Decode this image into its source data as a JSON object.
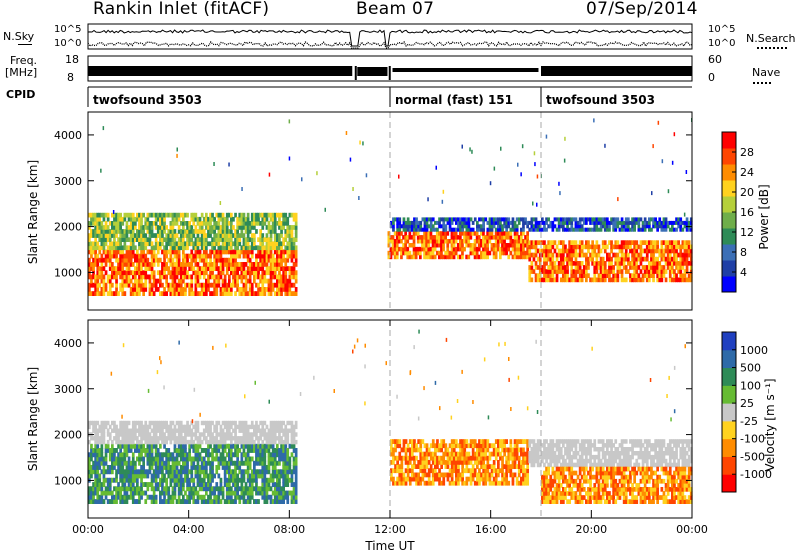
{
  "header": {
    "station": "Rankin Inlet (fitACF)",
    "beam": "Beam 07",
    "date": "07/Sep/2014"
  },
  "top_panels": {
    "nsky": {
      "label": "N.Sky",
      "ticks": [
        "10^5",
        "10^0"
      ],
      "right_label": "N.Search",
      "right_ticks": [
        "10^5",
        "10^0"
      ]
    },
    "freq": {
      "label": "Freq.",
      "unit": "[MHz]",
      "ticks": [
        "18",
        "8"
      ],
      "right_label": "Nave",
      "right_ticks": [
        "60",
        "0"
      ]
    },
    "cpid": {
      "label": "CPID",
      "segments": [
        {
          "start_hour": 0,
          "end_hour": 12,
          "label": "twofsound 3503"
        },
        {
          "start_hour": 12,
          "end_hour": 18,
          "label": "normal (fast) 151"
        },
        {
          "start_hour": 18,
          "end_hour": 24,
          "label": "twofsound 3503"
        }
      ]
    }
  },
  "chart_data": [
    {
      "type": "heatmap",
      "name": "power",
      "ylabel": "Slant Range [km]",
      "xlim": [
        0,
        24
      ],
      "ylim": [
        180,
        4500
      ],
      "yticks": [
        1000,
        2000,
        3000,
        4000
      ],
      "colorbar": {
        "label": "Power [dB]",
        "range": [
          0,
          32
        ],
        "ticks": [
          "28",
          "24",
          "20",
          "16",
          "12",
          "8",
          "4"
        ],
        "colors": [
          "#0000ff",
          "#1f3fa6",
          "#3b6fb6",
          "#2e8b57",
          "#6fae4a",
          "#b5cf3a",
          "#ffd21f",
          "#ff8c00",
          "#ff4500",
          "#ff0000"
        ]
      },
      "description_bands": [
        {
          "hours": [
            0,
            8.3
          ],
          "ranges_km": [
            500,
            1500
          ],
          "level": "high"
        },
        {
          "hours": [
            0,
            8.3
          ],
          "ranges_km": [
            1500,
            2300
          ],
          "level": "medium"
        },
        {
          "hours": [
            11.9,
            17.5
          ],
          "ranges_km": [
            1300,
            1900
          ],
          "level": "high"
        },
        {
          "hours": [
            12,
            24
          ],
          "ranges_km": [
            1900,
            2200
          ],
          "level": "low"
        },
        {
          "hours": [
            17.5,
            24
          ],
          "ranges_km": [
            800,
            1700
          ],
          "level": "high"
        }
      ]
    },
    {
      "type": "heatmap",
      "name": "velocity",
      "xlabel": "Time UT",
      "ylabel": "Slant Range [km]",
      "xlim": [
        0,
        24
      ],
      "ylim": [
        180,
        4500
      ],
      "xticks": [
        "00:00",
        "04:00",
        "08:00",
        "12:00",
        "16:00",
        "20:00",
        "00:00"
      ],
      "yticks": [
        1000,
        2000,
        3000,
        4000
      ],
      "colorbar": {
        "label": "Velocity [m s⁻¹]",
        "ticks": [
          "1000",
          "500",
          "100",
          "25",
          "-25",
          "-100",
          "-500",
          "-1000"
        ],
        "colors": [
          "#2040c0",
          "#2e6aa8",
          "#2e8b57",
          "#66bb33",
          "#c8c8c8",
          "#ffd21f",
          "#ff8c00",
          "#ff4500",
          "#ff0000"
        ]
      },
      "description_bands": [
        {
          "hours": [
            0,
            8.3
          ],
          "ranges_km": [
            500,
            1800
          ],
          "level": "positive"
        },
        {
          "hours": [
            0,
            8.3
          ],
          "ranges_km": [
            1800,
            2300
          ],
          "level": "ground"
        },
        {
          "hours": [
            12,
            17.5
          ],
          "ranges_km": [
            900,
            1900
          ],
          "level": "negative"
        },
        {
          "hours": [
            17.5,
            24
          ],
          "ranges_km": [
            1300,
            1900
          ],
          "level": "ground"
        },
        {
          "hours": [
            18,
            24
          ],
          "ranges_km": [
            500,
            1300
          ],
          "level": "negative"
        }
      ]
    }
  ]
}
